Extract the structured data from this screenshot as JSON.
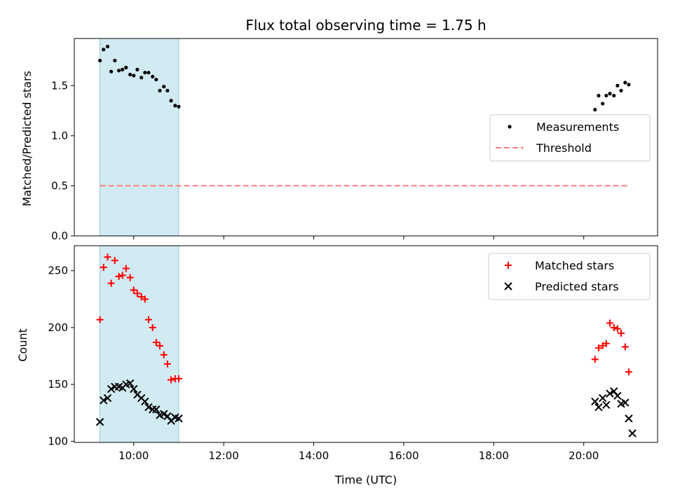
{
  "chart_data": {
    "title": "Flux total observing time = 1.75 h",
    "xlabel": "Time (UTC)",
    "x_ticks": [
      {
        "value": 10,
        "label": "10:00"
      },
      {
        "value": 12,
        "label": "12:00"
      },
      {
        "value": 14,
        "label": "14:00"
      },
      {
        "value": 16,
        "label": "16:00"
      },
      {
        "value": 18,
        "label": "18:00"
      },
      {
        "value": 20,
        "label": "20:00"
      }
    ],
    "xlim": [
      8.68,
      21.64
    ],
    "shaded_span": {
      "x": [
        9.25,
        11.0
      ],
      "color": "#add8e6"
    },
    "panels": [
      {
        "type": "scatter",
        "ylabel": "Matched/Predicted stars",
        "ylim": [
          0,
          1.97
        ],
        "y_ticks": [
          {
            "value": 0,
            "label": "0.0"
          },
          {
            "value": 0.5,
            "label": "0.5"
          },
          {
            "value": 1.0,
            "label": "1.0"
          },
          {
            "value": 1.5,
            "label": "1.5"
          }
        ],
        "legend_position": "center-right",
        "series": [
          {
            "name": "Measurements",
            "marker": "dot",
            "color": "#000000",
            "x": [
              9.25,
              9.33,
              9.42,
              9.5,
              9.58,
              9.67,
              9.75,
              9.83,
              9.92,
              10.0,
              10.08,
              10.17,
              10.25,
              10.33,
              10.42,
              10.5,
              10.58,
              10.67,
              10.75,
              10.83,
              10.92,
              11.0,
              20.25,
              20.33,
              20.42,
              20.5,
              20.58,
              20.67,
              20.75,
              20.83,
              20.92,
              21.0
            ],
            "y": [
              1.75,
              1.86,
              1.89,
              1.64,
              1.75,
              1.65,
              1.66,
              1.68,
              1.61,
              1.6,
              1.66,
              1.58,
              1.63,
              1.63,
              1.59,
              1.56,
              1.45,
              1.49,
              1.45,
              1.35,
              1.3,
              1.29,
              1.26,
              1.4,
              1.32,
              1.4,
              1.42,
              1.4,
              1.5,
              1.45,
              1.53,
              1.51
            ]
          },
          {
            "name": "Threshold",
            "marker": "dashed-line",
            "color": "#ff7f7f",
            "x": [
              9.25,
              21.0
            ],
            "y": [
              0.5,
              0.5
            ]
          }
        ]
      },
      {
        "type": "scatter",
        "ylabel": "Count",
        "ylim": [
          99,
          272
        ],
        "y_ticks": [
          {
            "value": 100,
            "label": "100"
          },
          {
            "value": 150,
            "label": "150"
          },
          {
            "value": 200,
            "label": "200"
          },
          {
            "value": 250,
            "label": "250"
          }
        ],
        "legend_position": "top-right",
        "series": [
          {
            "name": "Matched stars",
            "marker": "plus",
            "color": "#ff0000",
            "x": [
              9.25,
              9.33,
              9.42,
              9.5,
              9.58,
              9.67,
              9.75,
              9.83,
              9.92,
              10.0,
              10.08,
              10.17,
              10.25,
              10.33,
              10.42,
              10.5,
              10.58,
              10.67,
              10.75,
              10.83,
              10.92,
              11.0,
              20.25,
              20.33,
              20.42,
              20.5,
              20.58,
              20.67,
              20.75,
              20.83,
              20.92,
              21.0
            ],
            "y": [
              207,
              253,
              262,
              239,
              259,
              245,
              246,
              252,
              244,
              233,
              230,
              227,
              225,
              207,
              200,
              187,
              184,
              176,
              168,
              154,
              155,
              155,
              172,
              182,
              184,
              186,
              204,
              200,
              199,
              195,
              183,
              161
            ]
          },
          {
            "name": "Predicted stars",
            "marker": "x",
            "color": "#000000",
            "x": [
              9.25,
              9.33,
              9.42,
              9.5,
              9.58,
              9.67,
              9.75,
              9.83,
              9.92,
              10.0,
              10.08,
              10.17,
              10.25,
              10.33,
              10.42,
              10.5,
              10.58,
              10.67,
              10.75,
              10.83,
              10.92,
              11.0,
              20.25,
              20.33,
              20.42,
              20.5,
              20.58,
              20.67,
              20.75,
              20.83,
              20.92,
              21.0,
              21.08
            ],
            "y": [
              117,
              136,
              138,
              146,
              148,
              148,
              147,
              150,
              151,
              146,
              141,
              138,
              135,
              130,
              128,
              128,
              123,
              124,
              122,
              118,
              121,
              120,
              135,
              130,
              138,
              132,
              142,
              144,
              140,
              133,
              134,
              120,
              107
            ]
          }
        ]
      }
    ]
  }
}
